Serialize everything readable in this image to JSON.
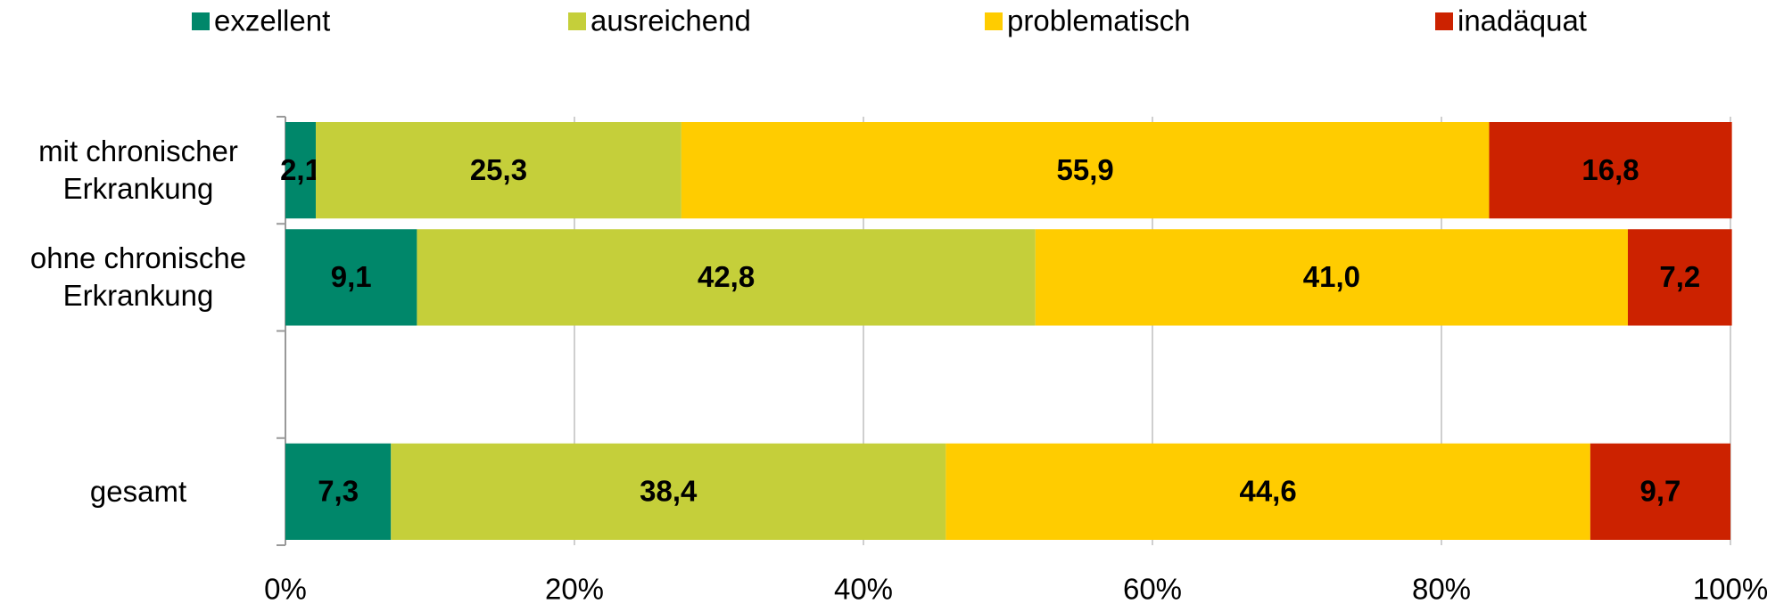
{
  "chart_data": {
    "type": "stacked_barh",
    "categories": [
      "mit chronischer Erkrankung",
      "ohne chronische Erkrankung",
      null,
      "gesamt"
    ],
    "series": [
      {
        "name": "exzellent",
        "color": "#00876a",
        "values": [
          2.1,
          9.1,
          null,
          7.3
        ],
        "value_labels": [
          "2,1",
          "9,1",
          null,
          "7,3"
        ]
      },
      {
        "name": "ausreichend",
        "color": "#c5cf3a",
        "values": [
          25.3,
          42.8,
          null,
          38.4
        ],
        "value_labels": [
          "25,3",
          "42,8",
          null,
          "38,4"
        ]
      },
      {
        "name": "problematisch",
        "color": "#ffcc00",
        "values": [
          55.9,
          41.0,
          null,
          44.6
        ],
        "value_labels": [
          "55,9",
          "41,0",
          null,
          "44,6"
        ]
      },
      {
        "name": "inadäquat",
        "color": "#cc2200",
        "values": [
          16.8,
          7.2,
          null,
          9.7
        ],
        "value_labels": [
          "16,8",
          "7,2",
          null,
          "9,7"
        ]
      }
    ],
    "xlim": [
      0,
      100
    ],
    "xticks": [
      {
        "value": 0,
        "label": "0%"
      },
      {
        "value": 20,
        "label": "20%"
      },
      {
        "value": 40,
        "label": "40%"
      },
      {
        "value": 60,
        "label": "60%"
      },
      {
        "value": 80,
        "label": "80%"
      },
      {
        "value": 100,
        "label": "100%"
      }
    ],
    "grid": true,
    "legend": "top"
  }
}
